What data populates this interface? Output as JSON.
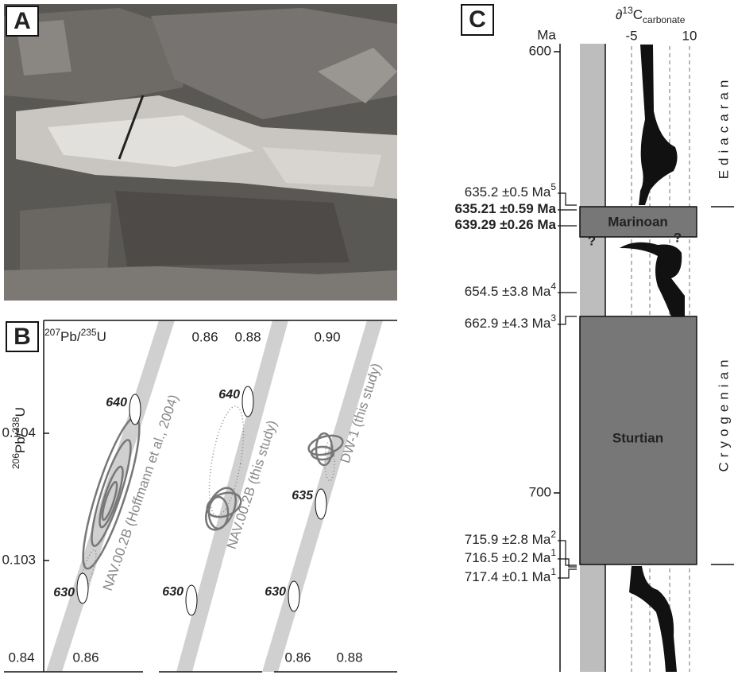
{
  "panel_a": {
    "label": "A"
  },
  "panel_b": {
    "label": "B",
    "x_axis": {
      "sup1": "207",
      "base1": "Pb/",
      "sup2": "235",
      "base2": "U"
    },
    "y_axis": {
      "sup1": "206",
      "base1": "Pb/",
      "sup2": "238",
      "base2": "U"
    },
    "top_ticks": [
      "0.86",
      "0.88",
      "0.90"
    ],
    "bottom_ticks": [
      "0.84",
      "0.86",
      "0.86",
      "0.88"
    ],
    "y_ticks": [
      "0.104",
      "0.103"
    ],
    "ellipse_labels": [
      "640",
      "630",
      "640",
      "630",
      "635",
      "630"
    ],
    "series": [
      "NAV.00.2B (Hoffmann et al., 2004)",
      "NAV.00.2B (this study)",
      "DW-1 (this study)"
    ]
  },
  "panel_c": {
    "label": "C",
    "age_unit": "Ma",
    "age_ticks": [
      "600",
      "700"
    ],
    "isotope": {
      "sym": "∂",
      "sup": "13",
      "base": "C",
      "sub": "carbonate"
    },
    "isotope_ticks": [
      "-5",
      "10"
    ],
    "ages": [
      {
        "text": "635.2 ±0.5 Ma",
        "sup": "5"
      },
      {
        "text": "635.21 ±0.59 Ma",
        "sup": ""
      },
      {
        "text": "639.29 ±0.26 Ma",
        "sup": ""
      },
      {
        "text": "654.5 ±3.8 Ma",
        "sup": "4"
      },
      {
        "text": "662.9 ±4.3 Ma",
        "sup": "3"
      },
      {
        "text": "715.9 ±2.8 Ma",
        "sup": "2"
      },
      {
        "text": "716.5 ±0.2 Ma",
        "sup": "1"
      },
      {
        "text": "717.4 ±0.1 Ma",
        "sup": "1"
      }
    ],
    "glaciations": [
      "Marinoan",
      "Sturtian"
    ],
    "uncertain": [
      "?",
      "?"
    ],
    "periods": [
      "Ediacaran",
      "Cryogenian"
    ]
  }
}
